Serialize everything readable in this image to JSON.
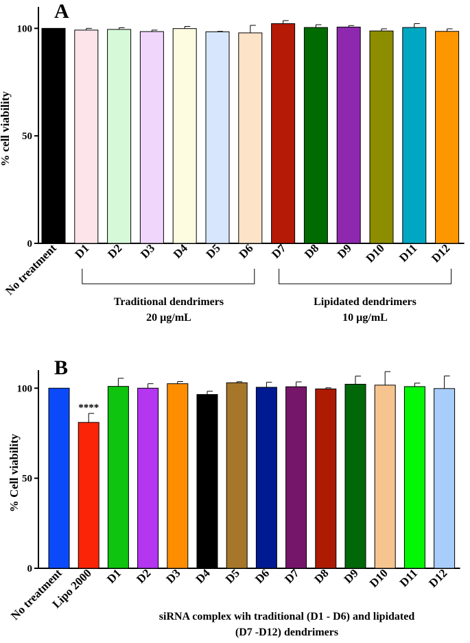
{
  "chart_data": [
    {
      "type": "bar",
      "panel_label": "A",
      "ylabel": "% cell viability",
      "ylim": [
        0,
        110
      ],
      "yticks": [
        0,
        50,
        100
      ],
      "categories": [
        "No treatment",
        "D1",
        "D2",
        "D3",
        "D4",
        "D5",
        "D6",
        "D7",
        "D8",
        "D9",
        "D10",
        "D11",
        "D12"
      ],
      "values": [
        100,
        99.2,
        99.5,
        98.5,
        99.9,
        98.4,
        97.9,
        102.2,
        100.4,
        100.6,
        98.8,
        100.4,
        98.6
      ],
      "errors": [
        0,
        0.8,
        0.8,
        0.7,
        1.0,
        0.2,
        3.5,
        1.4,
        1.3,
        0.7,
        1.0,
        1.8,
        1.2
      ],
      "colors": [
        "#000000",
        "#fde4ea",
        "#d6fad8",
        "#f1d6fc",
        "#fdfbe0",
        "#d7e6fc",
        "#fde3c8",
        "#b41a06",
        "#006b00",
        "#8e28ae",
        "#8d8d00",
        "#00a7c3",
        "#fe9600"
      ],
      "groups": [
        {
          "label": "Traditional dendrimers",
          "sublabel": "20 µg/mL"
        },
        {
          "label": "Lipidated dendrimers",
          "sublabel": "10 µg/mL"
        }
      ],
      "grid": false
    },
    {
      "type": "bar",
      "panel_label": "B",
      "ylabel": "% Cell viability",
      "ylim": [
        0,
        110
      ],
      "yticks": [
        0,
        50,
        100
      ],
      "categories": [
        "No treatment",
        "Lipo 2000",
        "D1",
        "D2",
        "D3",
        "D4",
        "D5",
        "D6",
        "D7",
        "D8",
        "D9",
        "D10",
        "D11",
        "D12"
      ],
      "values": [
        100,
        81,
        101,
        100,
        102.5,
        96.5,
        103,
        100.5,
        100.8,
        99.6,
        102.2,
        101.7,
        100.9,
        99.8
      ],
      "errors": [
        0,
        5,
        4.5,
        2.5,
        1.2,
        1.8,
        0.6,
        2.8,
        2.7,
        0.6,
        4.5,
        7.5,
        1.9,
        7.0
      ],
      "colors": [
        "#0b4af9",
        "#fb2406",
        "#0ec40e",
        "#b436f0",
        "#fe8e00",
        "#000000",
        "#a6772a",
        "#001a91",
        "#76166a",
        "#ad1b02",
        "#006808",
        "#f6c48e",
        "#03f603",
        "#a8cdfa"
      ],
      "annotation": {
        "category": "Lipo 2000",
        "text": "****"
      },
      "caption_line1": "siRNA  complex wih traditional (D1 - D6) and lipidated",
      "caption_line2": "(D7 -D12) dendrimers",
      "grid": false
    }
  ]
}
